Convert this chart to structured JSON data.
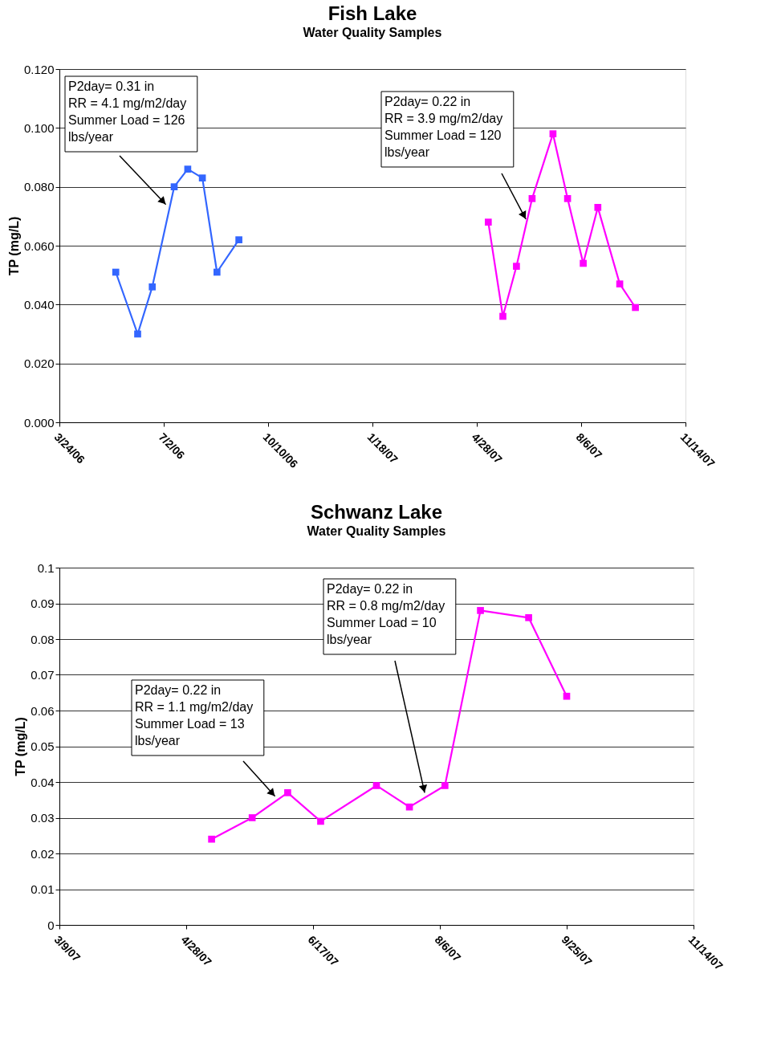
{
  "chart_data": [
    {
      "type": "line",
      "title": "Fish Lake",
      "subtitle": "Water Quality Samples",
      "ylabel": "TP (mg/L)",
      "series": [
        {
          "color": "#3366ff",
          "x": [
            "2006-05-17",
            "2006-06-07",
            "2006-06-21",
            "2006-07-12",
            "2006-07-25",
            "2006-08-08",
            "2006-08-22",
            "2006-09-12"
          ],
          "values": [
            0.051,
            0.03,
            0.046,
            0.08,
            0.086,
            0.083,
            0.051,
            0.062
          ]
        },
        {
          "color": "#ff00ff",
          "x": [
            "2007-05-09",
            "2007-05-23",
            "2007-06-05",
            "2007-06-20",
            "2007-07-10",
            "2007-07-24",
            "2007-08-08",
            "2007-08-22",
            "2007-09-12",
            "2007-09-27"
          ],
          "values": [
            0.068,
            0.036,
            0.053,
            0.076,
            0.098,
            0.076,
            0.054,
            0.073,
            0.047,
            0.039
          ]
        }
      ],
      "xlim": [
        "2006-03-24",
        "2007-11-14"
      ],
      "xticks": [
        {
          "value": "2006-03-24",
          "label": "3/24/06"
        },
        {
          "value": "2006-07-02",
          "label": "7/2/06"
        },
        {
          "value": "2006-10-10",
          "label": "10/10/06"
        },
        {
          "value": "2007-01-18",
          "label": "1/18/07"
        },
        {
          "value": "2007-04-28",
          "label": "4/28/07"
        },
        {
          "value": "2007-08-06",
          "label": "8/6/07"
        },
        {
          "value": "2007-11-14",
          "label": "11/14/07"
        }
      ],
      "ylim": [
        0,
        0.12
      ],
      "yticks": [
        {
          "value": 0,
          "label": "0.000"
        },
        {
          "value": 0.02,
          "label": "0.020"
        },
        {
          "value": 0.04,
          "label": "0.040"
        },
        {
          "value": 0.06,
          "label": "0.060"
        },
        {
          "value": 0.08,
          "label": "0.080"
        },
        {
          "value": 0.1,
          "label": "0.100"
        },
        {
          "value": 0.12,
          "label": "0.120"
        }
      ],
      "annotations": [
        {
          "text": "P2day= 0.31 in\nRR = 4.1 mg/m2/day\nSummer Load = 126\nlbs/year",
          "x": "2006-07-04",
          "y": 0.074
        },
        {
          "text": "P2day= 0.22 in\nRR = 3.9 mg/m2/day\nSummer Load = 120\nlbs/year",
          "x": "2007-06-14",
          "y": 0.069
        }
      ],
      "grid": "y",
      "legend": false,
      "marker": "square",
      "line_style": "solid"
    },
    {
      "type": "line",
      "title": "Schwanz Lake",
      "subtitle": "Water Quality Samples",
      "ylabel": "TP (mg/L)",
      "series": [
        {
          "color": "#ff00ff",
          "x": [
            "2007-05-08",
            "2007-05-24",
            "2007-06-07",
            "2007-06-20",
            "2007-07-12",
            "2007-07-25",
            "2007-08-08",
            "2007-08-22",
            "2007-09-10",
            "2007-09-25"
          ],
          "values": [
            0.024,
            0.03,
            0.037,
            0.029,
            0.039,
            0.033,
            0.039,
            0.088,
            0.086,
            0.064
          ]
        }
      ],
      "xlim": [
        "2007-03-09",
        "2007-11-14"
      ],
      "xticks": [
        {
          "value": "2007-03-09",
          "label": "3/9/07"
        },
        {
          "value": "2007-04-28",
          "label": "4/28/07"
        },
        {
          "value": "2007-06-17",
          "label": "6/17/07"
        },
        {
          "value": "2007-08-06",
          "label": "8/6/07"
        },
        {
          "value": "2007-09-25",
          "label": "9/25/07"
        },
        {
          "value": "2007-11-14",
          "label": "11/14/07"
        }
      ],
      "ylim": [
        0,
        0.1
      ],
      "yticks": [
        0,
        0.01,
        0.02,
        0.03,
        0.04,
        0.05,
        0.06,
        0.07,
        0.08,
        0.09,
        0.1
      ],
      "annotations": [
        {
          "text": "P2day= 0.22 in\nRR = 1.1 mg/m2/day\nSummer Load = 13\nlbs/year",
          "x": "2007-06-02",
          "y": 0.036
        },
        {
          "text": "P2day= 0.22 in\nRR = 0.8 mg/m2/day\nSummer Load = 10\nlbs/year",
          "x": "2007-07-31",
          "y": 0.037
        }
      ],
      "grid": "y",
      "legend": false,
      "marker": "square",
      "line_style": "solid"
    }
  ]
}
